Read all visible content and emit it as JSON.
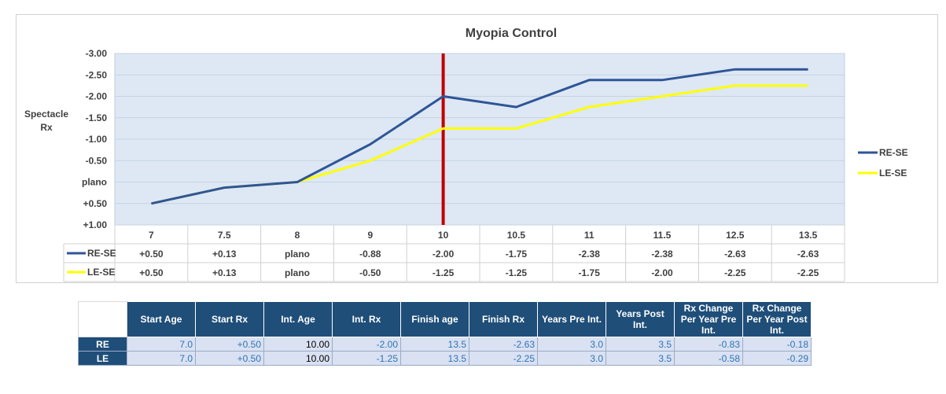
{
  "chart_data": {
    "type": "line",
    "title": "Myopia Control",
    "ylabel": "Spectacle Rx",
    "categories": [
      "7",
      "7.5",
      "8",
      "9",
      "10",
      "10.5",
      "11",
      "11.5",
      "12.5",
      "13.5"
    ],
    "x": [
      7,
      7.5,
      8,
      9,
      10,
      10.5,
      11,
      11.5,
      12.5,
      13.5
    ],
    "ylim": [
      1.0,
      -3.0
    ],
    "yticks": [
      "-3.00",
      "-2.50",
      "-2.00",
      "-1.50",
      "-1.00",
      "-0.50",
      "plano",
      "+0.50",
      "+1.00"
    ],
    "grid": true,
    "legend": "right",
    "marker_line": {
      "x": 10,
      "color": "#c00000"
    },
    "series": [
      {
        "name": "RE-SE",
        "color": "#2f5597",
        "values": [
          0.5,
          0.13,
          0,
          -0.88,
          -2.0,
          -1.75,
          -2.38,
          -2.38,
          -2.63,
          -2.63
        ],
        "labels": [
          "+0.50",
          "+0.13",
          "plano",
          "-0.88",
          "-2.00",
          "-1.75",
          "-2.38",
          "-2.38",
          "-2.63",
          "-2.63"
        ]
      },
      {
        "name": "LE-SE",
        "color": "#ffff00",
        "values": [
          0.5,
          0.13,
          0,
          -0.5,
          -1.25,
          -1.25,
          -1.75,
          -2.0,
          -2.25,
          -2.25
        ],
        "labels": [
          "+0.50",
          "+0.13",
          "plano",
          "-0.50",
          "-1.25",
          "-1.25",
          "-1.75",
          "-2.00",
          "-2.25",
          "-2.25"
        ]
      }
    ]
  },
  "summary_table": {
    "headers": [
      "Start Age",
      "Start Rx",
      "Int. Age",
      "Int. Rx",
      "Finish age",
      "Finish Rx",
      "Years Pre Int.",
      "Years Post Int.",
      "Rx Change Per Year Pre Int.",
      "Rx Change Per Year Post Int."
    ],
    "rows": [
      {
        "label": "RE",
        "cells": [
          "7.0",
          "+0.50",
          "10.00",
          "-2.00",
          "13.5",
          "-2.63",
          "3.0",
          "3.5",
          "-0.83",
          "-0.18"
        ]
      },
      {
        "label": "LE",
        "cells": [
          "7.0",
          "+0.50",
          "10.00",
          "-1.25",
          "13.5",
          "-2.25",
          "3.0",
          "3.5",
          "-0.58",
          "-0.29"
        ]
      }
    ]
  }
}
